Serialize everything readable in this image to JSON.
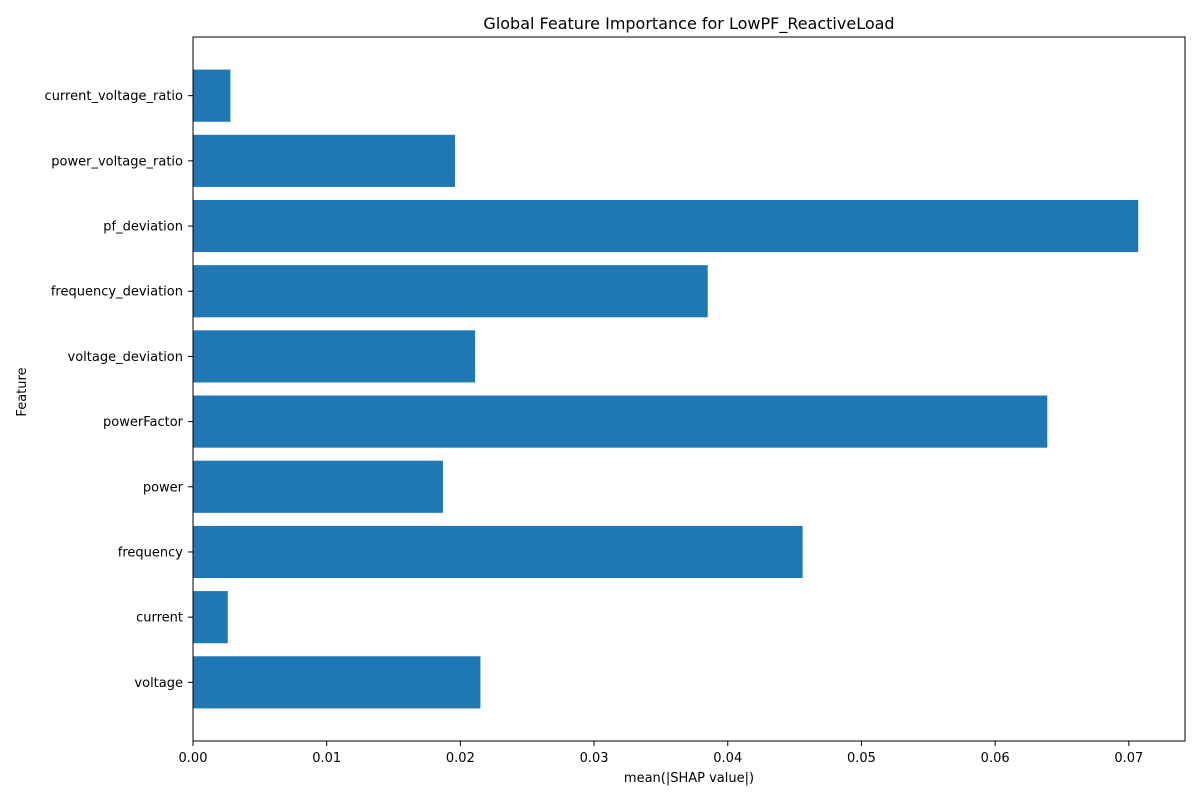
{
  "chart_data": {
    "type": "bar",
    "orientation": "horizontal",
    "title": "Global Feature Importance for LowPF_ReactiveLoad",
    "xlabel": "mean(|SHAP value|)",
    "ylabel": "Feature",
    "categories": [
      "voltage",
      "current",
      "frequency",
      "power",
      "powerFactor",
      "voltage_deviation",
      "frequency_deviation",
      "pf_deviation",
      "power_voltage_ratio",
      "current_voltage_ratio"
    ],
    "values": [
      0.0215,
      0.0026,
      0.0456,
      0.0187,
      0.0639,
      0.0211,
      0.0385,
      0.0707,
      0.0196,
      0.0028
    ],
    "xlim": [
      0,
      0.0742
    ],
    "xticks": [
      0.0,
      0.01,
      0.02,
      0.03,
      0.04,
      0.05,
      0.06,
      0.07
    ],
    "xtick_labels": [
      "0.00",
      "0.01",
      "0.02",
      "0.03",
      "0.04",
      "0.05",
      "0.06",
      "0.07"
    ],
    "bar_color": "#1f77b4",
    "grid": false,
    "legend": "none"
  }
}
